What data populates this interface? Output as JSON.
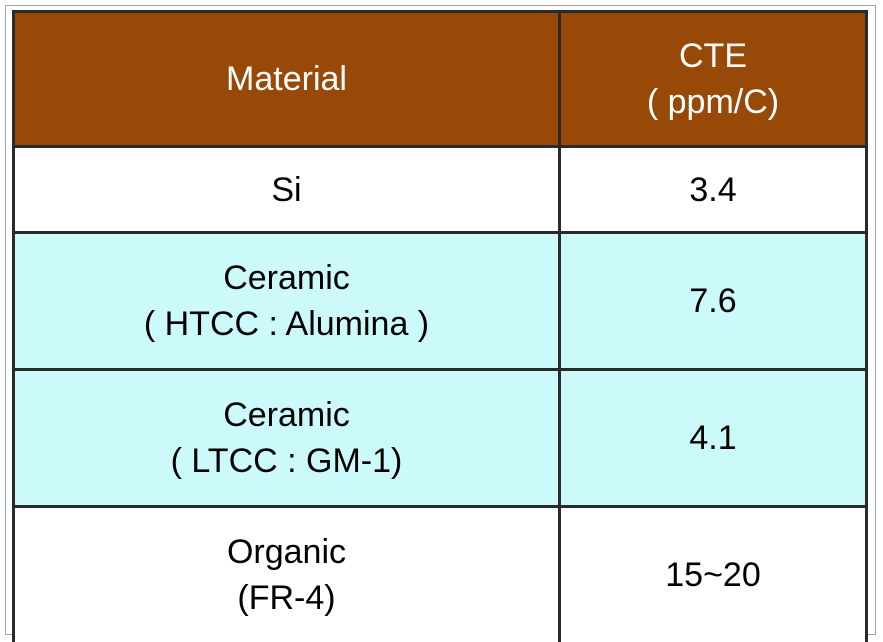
{
  "table": {
    "header": [
      [
        "Material"
      ],
      [
        "CTE",
        "( ppm/C)"
      ]
    ],
    "rows": [
      [
        [
          "Si"
        ],
        [
          "3.4"
        ]
      ],
      [
        [
          "Ceramic",
          "( HTCC : Alumina )"
        ],
        [
          "7.6"
        ]
      ],
      [
        [
          "Ceramic",
          "( LTCC : GM-1)"
        ],
        [
          "4.1"
        ]
      ],
      [
        [
          "Organic",
          "(FR-4)"
        ],
        [
          "15~20"
        ]
      ]
    ]
  }
}
